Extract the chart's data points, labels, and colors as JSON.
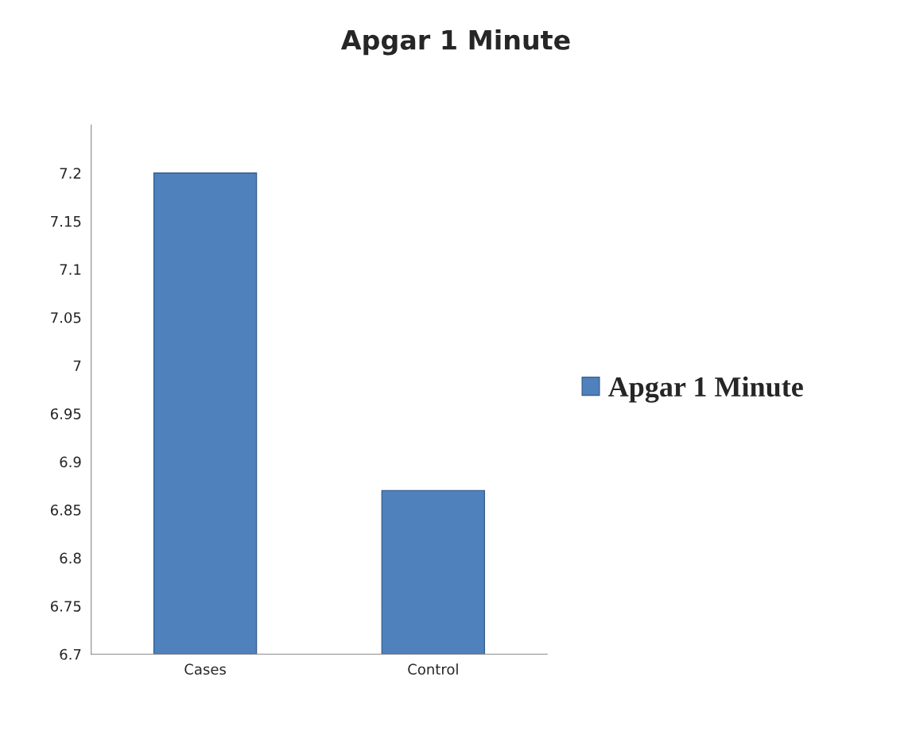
{
  "chart_data": {
    "type": "bar",
    "title": "Apgar 1 Minute",
    "categories": [
      "Cases",
      "Control"
    ],
    "series": [
      {
        "name": "Apgar 1 Minute",
        "color": "#4f81bd",
        "values": [
          7.2,
          6.87
        ]
      }
    ],
    "ylim": [
      6.7,
      7.25
    ],
    "yticks": [
      6.7,
      6.75,
      6.8,
      6.85,
      6.9,
      6.95,
      7,
      7.05,
      7.1,
      7.15,
      7.2
    ],
    "grid": false,
    "legend": "right"
  }
}
